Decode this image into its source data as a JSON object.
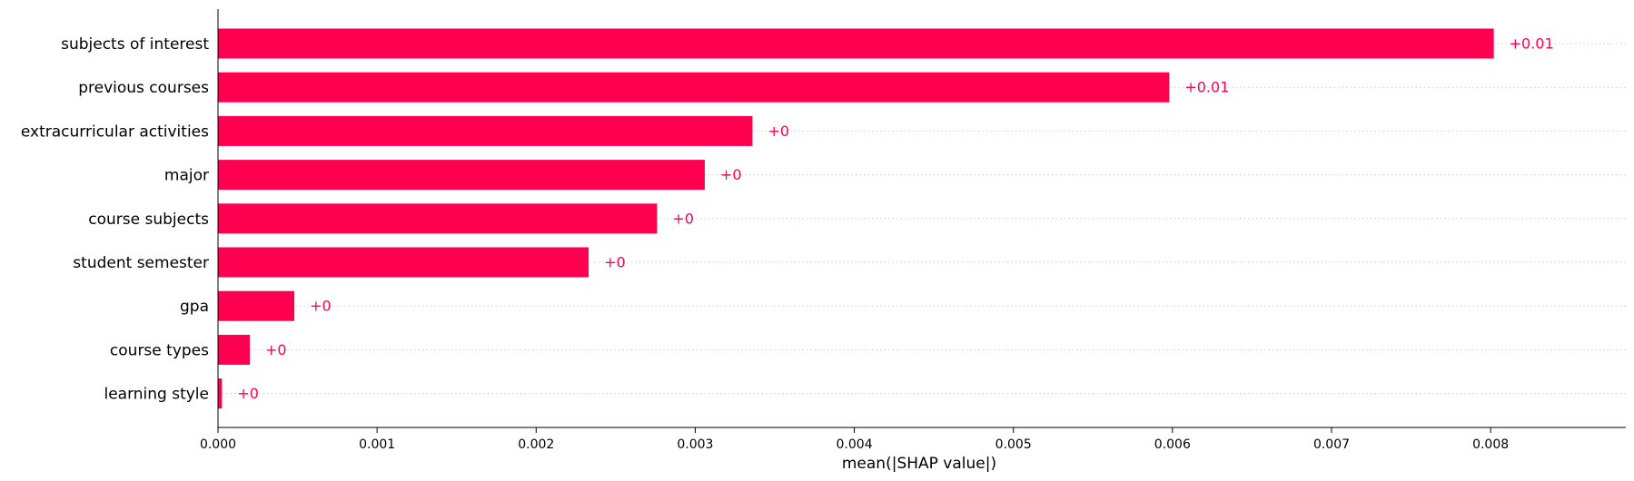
{
  "chart_data": {
    "type": "bar",
    "orientation": "horizontal",
    "categories": [
      "subjects of interest",
      "previous courses",
      "extracurricular activities",
      "major",
      "course subjects",
      "student semester",
      "gpa",
      "course types",
      "learning style"
    ],
    "values": [
      0.00802,
      0.00598,
      0.00336,
      0.00306,
      0.00276,
      0.00233,
      0.00048,
      0.0002,
      2.5e-05
    ],
    "value_labels": [
      "+0.01",
      "+0.01",
      "+0",
      "+0",
      "+0",
      "+0",
      "+0",
      "+0",
      "+0"
    ],
    "xlabel": "mean(|SHAP value|)",
    "ylabel": "",
    "xlim": [
      0,
      0.00885
    ],
    "xticks": [
      0.0,
      0.001,
      0.002,
      0.003,
      0.004,
      0.005,
      0.006,
      0.007,
      0.008
    ],
    "xtick_labels": [
      "0.000",
      "0.001",
      "0.002",
      "0.003",
      "0.004",
      "0.005",
      "0.006",
      "0.007",
      "0.008"
    ],
    "gridlines": "horizontal dotted per row",
    "bar_color": "#ff0051"
  }
}
